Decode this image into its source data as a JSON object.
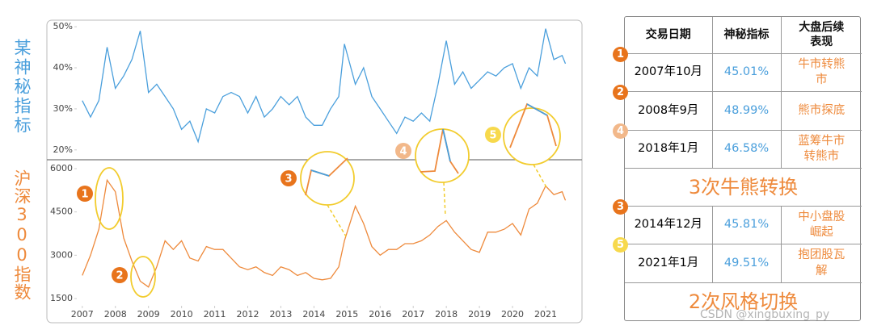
{
  "chart_data": [
    {
      "type": "line",
      "ylabel": "某神秘指标",
      "x": [
        2007.0,
        2007.25,
        2007.5,
        2007.75,
        2008.0,
        2008.25,
        2008.5,
        2008.75,
        2009.0,
        2009.25,
        2009.5,
        2009.75,
        2010.0,
        2010.25,
        2010.5,
        2010.75,
        2011.0,
        2011.25,
        2011.5,
        2011.75,
        2012.0,
        2012.25,
        2012.5,
        2012.75,
        2013.0,
        2013.25,
        2013.5,
        2013.75,
        2014.0,
        2014.25,
        2014.5,
        2014.75,
        2014.92,
        2015.25,
        2015.5,
        2015.75,
        2016.0,
        2016.25,
        2016.5,
        2016.75,
        2017.0,
        2017.25,
        2017.5,
        2017.75,
        2018.0,
        2018.25,
        2018.5,
        2018.75,
        2019.0,
        2019.25,
        2019.5,
        2019.75,
        2020.0,
        2020.25,
        2020.5,
        2020.75,
        2021.0,
        2021.25,
        2021.5,
        2021.6
      ],
      "series": [
        {
          "name": "某神秘指标",
          "color": "#4a9fdc",
          "values": [
            32,
            28,
            32,
            45.01,
            35,
            38,
            42,
            48.99,
            34,
            36,
            33,
            30,
            25,
            27,
            22,
            30,
            29,
            33,
            34,
            33,
            29,
            33,
            28,
            30,
            33,
            31,
            33,
            28,
            26,
            26,
            30,
            33,
            45.81,
            36,
            40,
            33,
            30,
            27,
            24,
            28,
            27,
            29,
            27,
            36,
            46.58,
            36,
            39,
            35,
            37,
            39,
            38,
            40,
            41,
            35,
            40,
            38,
            49.51,
            42,
            43,
            41
          ]
        }
      ],
      "xlim": [
        2005.93,
        2022.1
      ],
      "ylim": [
        17.6,
        51.6
      ],
      "yticks": [
        {
          "value": 20,
          "label": "20%"
        },
        {
          "value": 30,
          "label": "30%"
        },
        {
          "value": 40,
          "label": "40%"
        },
        {
          "value": 50,
          "label": "50%"
        }
      ]
    },
    {
      "type": "line",
      "ylabel": "沪深300指数",
      "x": [
        2007.0,
        2007.25,
        2007.5,
        2007.75,
        2008.0,
        2008.25,
        2008.5,
        2008.75,
        2009.0,
        2009.25,
        2009.5,
        2009.75,
        2010.0,
        2010.25,
        2010.5,
        2010.75,
        2011.0,
        2011.25,
        2011.5,
        2011.75,
        2012.0,
        2012.25,
        2012.5,
        2012.75,
        2013.0,
        2013.25,
        2013.5,
        2013.75,
        2014.0,
        2014.25,
        2014.5,
        2014.75,
        2014.92,
        2015.25,
        2015.5,
        2015.75,
        2016.0,
        2016.25,
        2016.5,
        2016.75,
        2017.0,
        2017.25,
        2017.5,
        2017.75,
        2018.0,
        2018.25,
        2018.5,
        2018.75,
        2019.0,
        2019.25,
        2019.5,
        2019.75,
        2020.0,
        2020.25,
        2020.5,
        2020.75,
        2021.0,
        2021.25,
        2021.5,
        2021.6
      ],
      "series": [
        {
          "name": "沪深300指数",
          "color": "#ee8a3c",
          "values": [
            2300,
            3000,
            3900,
            5600,
            5200,
            3600,
            2800,
            2100,
            1900,
            2600,
            3500,
            3200,
            3500,
            2900,
            2800,
            3300,
            3200,
            3200,
            2900,
            2600,
            2500,
            2600,
            2400,
            2300,
            2600,
            2500,
            2300,
            2400,
            2200,
            2150,
            2200,
            2600,
            3500,
            4700,
            4100,
            3300,
            3000,
            3200,
            3200,
            3400,
            3400,
            3500,
            3700,
            4000,
            4200,
            3800,
            3500,
            3200,
            3100,
            3800,
            3800,
            3900,
            4100,
            3700,
            4600,
            4800,
            5400,
            5100,
            5200,
            4900
          ]
        }
      ],
      "xlim": [
        2005.93,
        2022.1
      ],
      "ylim": [
        1165,
        6307
      ],
      "yticks": [
        1500,
        3000,
        4500,
        6000
      ],
      "xticks": [
        2007,
        2008,
        2009,
        2010,
        2011,
        2012,
        2013,
        2014,
        2015,
        2016,
        2017,
        2018,
        2019,
        2020,
        2021
      ]
    }
  ],
  "annotations": [
    "1",
    "2",
    "3",
    "4",
    "5"
  ],
  "table": {
    "header": [
      "交易日期",
      "神秘指标",
      "大盘后续表现"
    ],
    "groups": [
      {
        "rows": [
          [
            "1",
            "2007年10月",
            "45.01%",
            "牛市转熊市"
          ],
          [
            "2",
            "2008年9月",
            "48.99%",
            "熊市探底"
          ],
          [
            "4",
            "2018年1月",
            "46.58%",
            "蓝筹牛市转熊市"
          ]
        ],
        "summary": "3次牛熊转换"
      },
      {
        "rows": [
          [
            "3",
            "2014年12月",
            "45.81%",
            "中小盘股崛起"
          ],
          [
            "5",
            "2021年1月",
            "49.51%",
            "抱团股瓦解"
          ]
        ],
        "summary": "2次风格切换"
      }
    ]
  },
  "watermark": "CSDN @xingbuxing_py"
}
